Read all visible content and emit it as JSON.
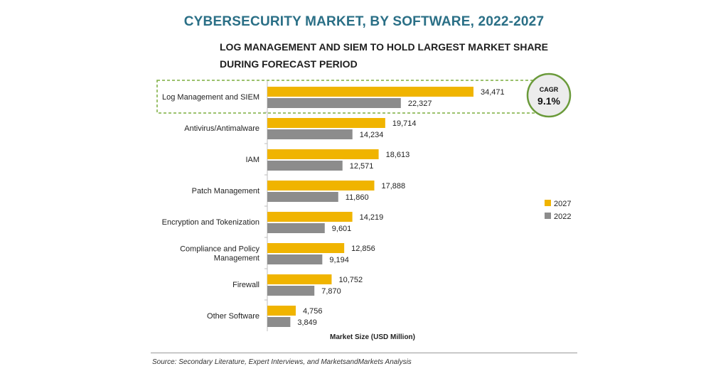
{
  "chart_data": {
    "type": "bar",
    "orientation": "horizontal",
    "title": "CYBERSECURITY MARKET, BY SOFTWARE, 2022-2027",
    "subtitle": "LOG MANAGEMENT AND SIEM TO HOLD LARGEST MARKET SHARE DURING FORECAST PERIOD",
    "xlabel": "Market Size (USD Million)",
    "ylabel": "",
    "categories": [
      "Log Management and SIEM",
      "Antivirus/Antimalware",
      "IAM",
      "Patch Management",
      "Encryption and Tokenization",
      "Compliance and Policy Management",
      "Firewall",
      "Other Software"
    ],
    "category_lines": [
      [
        "Log Management and SIEM"
      ],
      [
        "Antivirus/Antimalware"
      ],
      [
        "IAM"
      ],
      [
        "Patch Management"
      ],
      [
        "Encryption and Tokenization"
      ],
      [
        "Compliance and Policy",
        "Management"
      ],
      [
        "Firewall"
      ],
      [
        "Other Software"
      ]
    ],
    "series": [
      {
        "name": "2027",
        "color": "#f0b400",
        "values": [
          34471,
          19714,
          18613,
          17888,
          14219,
          12856,
          10752,
          4756
        ]
      },
      {
        "name": "2022",
        "color": "#8c8c8c",
        "values": [
          22327,
          14234,
          12571,
          11860,
          9601,
          9194,
          7870,
          3849
        ]
      }
    ],
    "value_labels": [
      [
        "34,471",
        "19,714",
        "18,613",
        "17,888",
        "14,219",
        "12,856",
        "10,752",
        "4,756"
      ],
      [
        "22,327",
        "14,234",
        "12,571",
        "11,860",
        "9,601",
        "9,194",
        "7,870",
        "3,849"
      ]
    ],
    "xlim": [
      0,
      42000
    ],
    "grid": false,
    "legend_position": "right",
    "highlight_category": "Log Management and SIEM",
    "annotation": {
      "label": "CAGR",
      "value": "9.1%"
    }
  },
  "footer": {
    "source": "Source: Secondary Literature, Expert Interviews, and MarketsandMarkets Analysis"
  }
}
